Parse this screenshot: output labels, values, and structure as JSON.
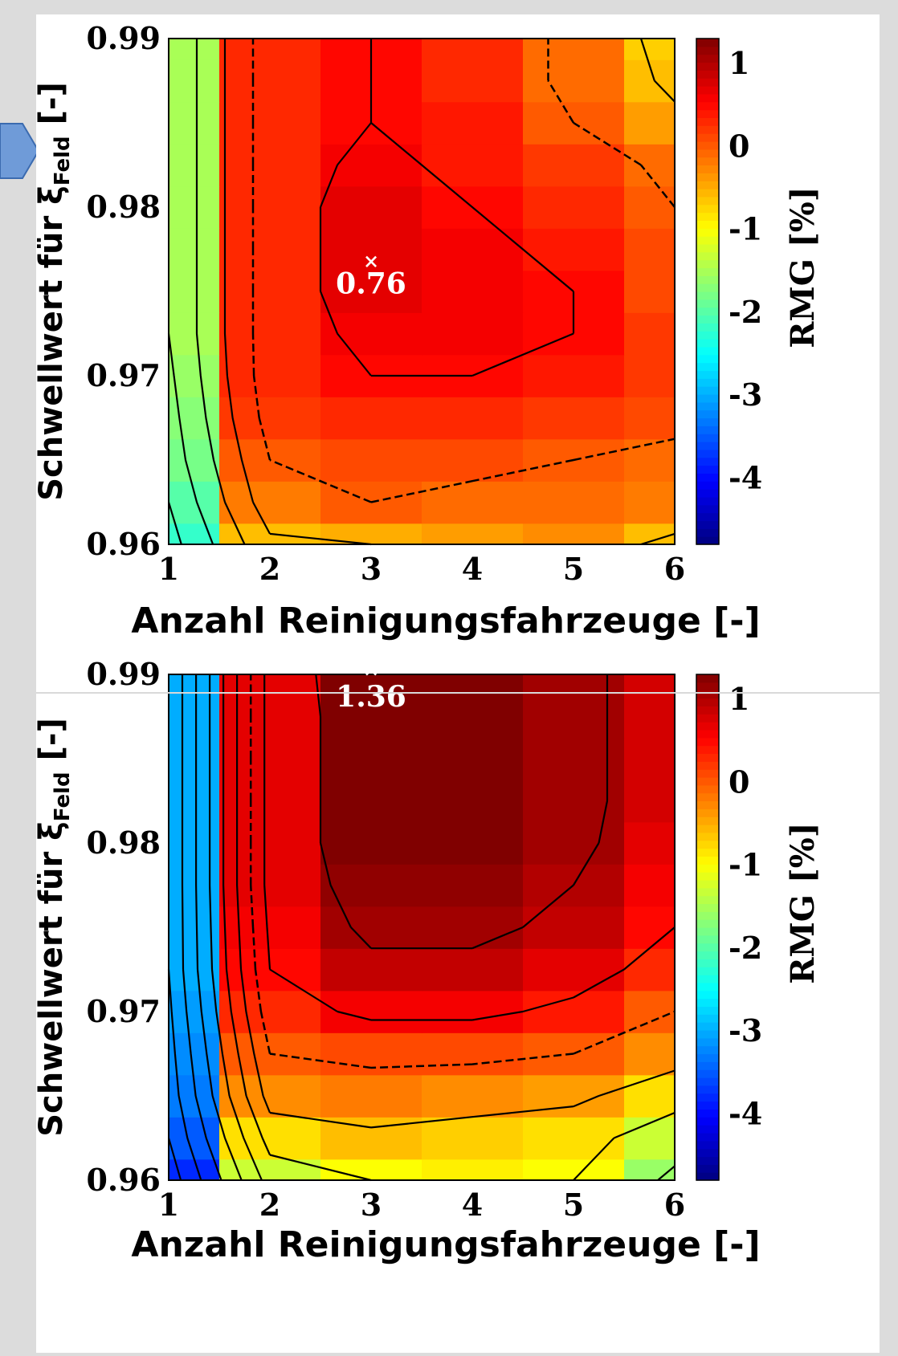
{
  "charts": [
    {
      "ylabel_main": "Schwellwert für ξ",
      "ylabel_sub": "Feld",
      "ylabel_tail": " [-]",
      "xlabel": "Anzahl Reinigungsfahrzeuge [-]",
      "cbar_label": "RMG [%]",
      "peak_label": "0.76"
    },
    {
      "ylabel_main": "Schwellwert für ξ",
      "ylabel_sub": "Feld",
      "ylabel_tail": " [-]",
      "xlabel": "Anzahl Reinigungsfahrzeuge [-]",
      "cbar_label": "RMG [%]",
      "peak_label": "1.36"
    }
  ],
  "chart_data": [
    {
      "type": "heatmap",
      "xlabel": "Anzahl Reinigungsfahrzeuge [-]",
      "ylabel": "Schwellwert für ξFeld [-]",
      "x": [
        1,
        2,
        3,
        4,
        5,
        6
      ],
      "y": [
        0.96,
        0.9625,
        0.965,
        0.9675,
        0.97,
        0.9725,
        0.975,
        0.9775,
        0.98,
        0.9825,
        0.985,
        0.9875,
        0.99
      ],
      "x_ticks": [
        "1",
        "2",
        "3",
        "4",
        "5",
        "6"
      ],
      "y_ticks": [
        "0.96",
        "0.97",
        "0.98",
        "0.99"
      ],
      "xlim": [
        1,
        6
      ],
      "ylim": [
        0.96,
        0.99
      ],
      "colorbar": {
        "label": "RMG [%]",
        "ticks": [
          "1",
          "0",
          "-1",
          "-2",
          "-3",
          "-4"
        ],
        "range": [
          -4.8,
          1.3
        ],
        "colormap": "jet"
      },
      "z_rows_bottom_to_top": [
        [
          -2.2,
          -0.6,
          -0.5,
          -0.4,
          -0.3,
          -0.6
        ],
        [
          -2.0,
          -0.2,
          0.0,
          -0.1,
          -0.1,
          -0.2
        ],
        [
          -1.8,
          0.0,
          0.1,
          0.1,
          0.0,
          -0.1
        ],
        [
          -1.7,
          0.2,
          0.3,
          0.3,
          0.2,
          0.1
        ],
        [
          -1.6,
          0.3,
          0.5,
          0.5,
          0.4,
          0.2
        ],
        [
          -1.5,
          0.3,
          0.6,
          0.6,
          0.5,
          0.2
        ],
        [
          -1.5,
          0.3,
          0.7,
          0.6,
          0.5,
          0.1
        ],
        [
          -1.5,
          0.3,
          0.7,
          0.6,
          0.4,
          0.1
        ],
        [
          -1.5,
          0.3,
          0.7,
          0.5,
          0.3,
          0.0
        ],
        [
          -1.5,
          0.3,
          0.6,
          0.4,
          0.2,
          -0.1
        ],
        [
          -1.5,
          0.3,
          0.5,
          0.4,
          0.0,
          -0.4
        ],
        [
          -1.5,
          0.3,
          0.5,
          0.3,
          -0.1,
          -0.6
        ],
        [
          -1.5,
          0.3,
          0.5,
          0.3,
          -0.1,
          -0.7
        ]
      ],
      "annotations": [
        {
          "text": "0.76",
          "x": 3,
          "y": 0.9765,
          "marker": "x"
        }
      ]
    },
    {
      "type": "heatmap",
      "xlabel": "Anzahl Reinigungsfahrzeuge [-]",
      "ylabel": "Schwellwert für ξFeld [-]",
      "x": [
        1,
        2,
        3,
        4,
        5,
        6
      ],
      "y": [
        0.96,
        0.9625,
        0.965,
        0.9675,
        0.97,
        0.9725,
        0.975,
        0.9775,
        0.98,
        0.9825,
        0.985,
        0.9875,
        0.99
      ],
      "x_ticks": [
        "1",
        "2",
        "3",
        "4",
        "5",
        "6"
      ],
      "y_ticks": [
        "0.96",
        "0.97",
        "0.98",
        "0.99"
      ],
      "xlim": [
        1,
        6
      ],
      "ylim": [
        0.96,
        0.99
      ],
      "colorbar": {
        "label": "RMG [%]",
        "ticks": [
          "1",
          "0",
          "-1",
          "-2",
          "-3",
          "-4"
        ],
        "range": [
          -4.8,
          1.3
        ],
        "colormap": "jet"
      },
      "z_rows_bottom_to_top": [
        [
          -3.8,
          -1.3,
          -1.0,
          -0.9,
          -1.0,
          -1.6
        ],
        [
          -3.5,
          -0.8,
          -0.6,
          -0.7,
          -0.8,
          -1.3
        ],
        [
          -3.3,
          -0.3,
          -0.2,
          -0.3,
          -0.4,
          -0.8
        ],
        [
          -3.2,
          0.0,
          0.1,
          0.1,
          0.0,
          -0.3
        ],
        [
          -3.1,
          0.3,
          0.6,
          0.6,
          0.4,
          0.0
        ],
        [
          -3.0,
          0.5,
          0.9,
          0.9,
          0.7,
          0.3
        ],
        [
          -3.0,
          0.6,
          1.1,
          1.1,
          0.9,
          0.5
        ],
        [
          -3.0,
          0.7,
          1.2,
          1.2,
          1.0,
          0.6
        ],
        [
          -3.0,
          0.7,
          1.3,
          1.3,
          1.1,
          0.7
        ],
        [
          -3.0,
          0.7,
          1.3,
          1.3,
          1.1,
          0.8
        ],
        [
          -3.0,
          0.7,
          1.3,
          1.3,
          1.1,
          0.8
        ],
        [
          -3.0,
          0.7,
          1.3,
          1.3,
          1.1,
          0.8
        ],
        [
          -3.0,
          0.7,
          1.36,
          1.3,
          1.1,
          0.8
        ]
      ],
      "annotations": [
        {
          "text": "1.36",
          "x": 3,
          "y": 0.99,
          "marker": "x"
        }
      ]
    }
  ]
}
